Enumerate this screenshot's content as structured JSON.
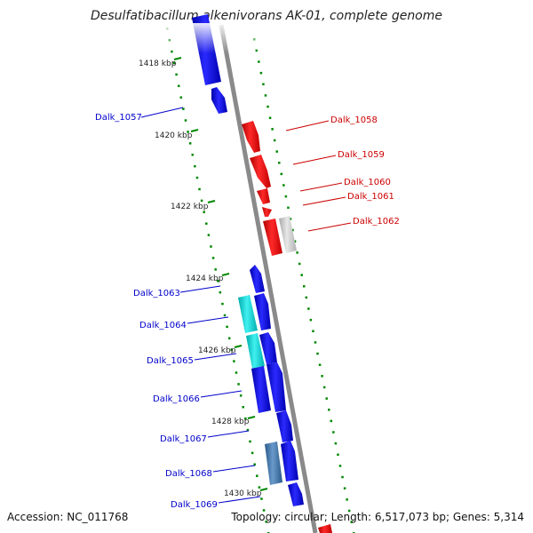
{
  "title": "Desulfatibacillum alkenivorans AK-01, complete genome",
  "accession": "Accession: NC_011768",
  "summary": "Topology: circular; Length: 6,517,073 bp; Genes: 5,314",
  "colors": {
    "forward": "#0000ee",
    "reverse": "#ee0000",
    "cyan": "#00c8c8",
    "steel": "#3a6e9e",
    "grey": "#c0c0c0",
    "backbone": "#808080",
    "ticks": "#008800"
  },
  "kbp_labels": [
    "1418 kbp",
    "1420 kbp",
    "1422 kbp",
    "1424 kbp",
    "1426 kbp",
    "1428 kbp",
    "1430 kbp"
  ],
  "left_genes": [
    {
      "name": "Dalk_1057",
      "color": "#0000cc"
    },
    {
      "name": "Dalk_1063",
      "color": "#0000cc"
    },
    {
      "name": "Dalk_1064",
      "color": "#0000cc"
    },
    {
      "name": "Dalk_1065",
      "color": "#0000cc"
    },
    {
      "name": "Dalk_1066",
      "color": "#0000cc"
    },
    {
      "name": "Dalk_1067",
      "color": "#0000cc"
    },
    {
      "name": "Dalk_1068",
      "color": "#0000cc"
    },
    {
      "name": "Dalk_1069",
      "color": "#0000cc"
    }
  ],
  "right_genes": [
    {
      "name": "Dalk_1058",
      "color": "#cc0000"
    },
    {
      "name": "Dalk_1059",
      "color": "#cc0000"
    },
    {
      "name": "Dalk_1060",
      "color": "#cc0000"
    },
    {
      "name": "Dalk_1061",
      "color": "#cc0000"
    },
    {
      "name": "Dalk_1062",
      "color": "#cc0000"
    }
  ]
}
